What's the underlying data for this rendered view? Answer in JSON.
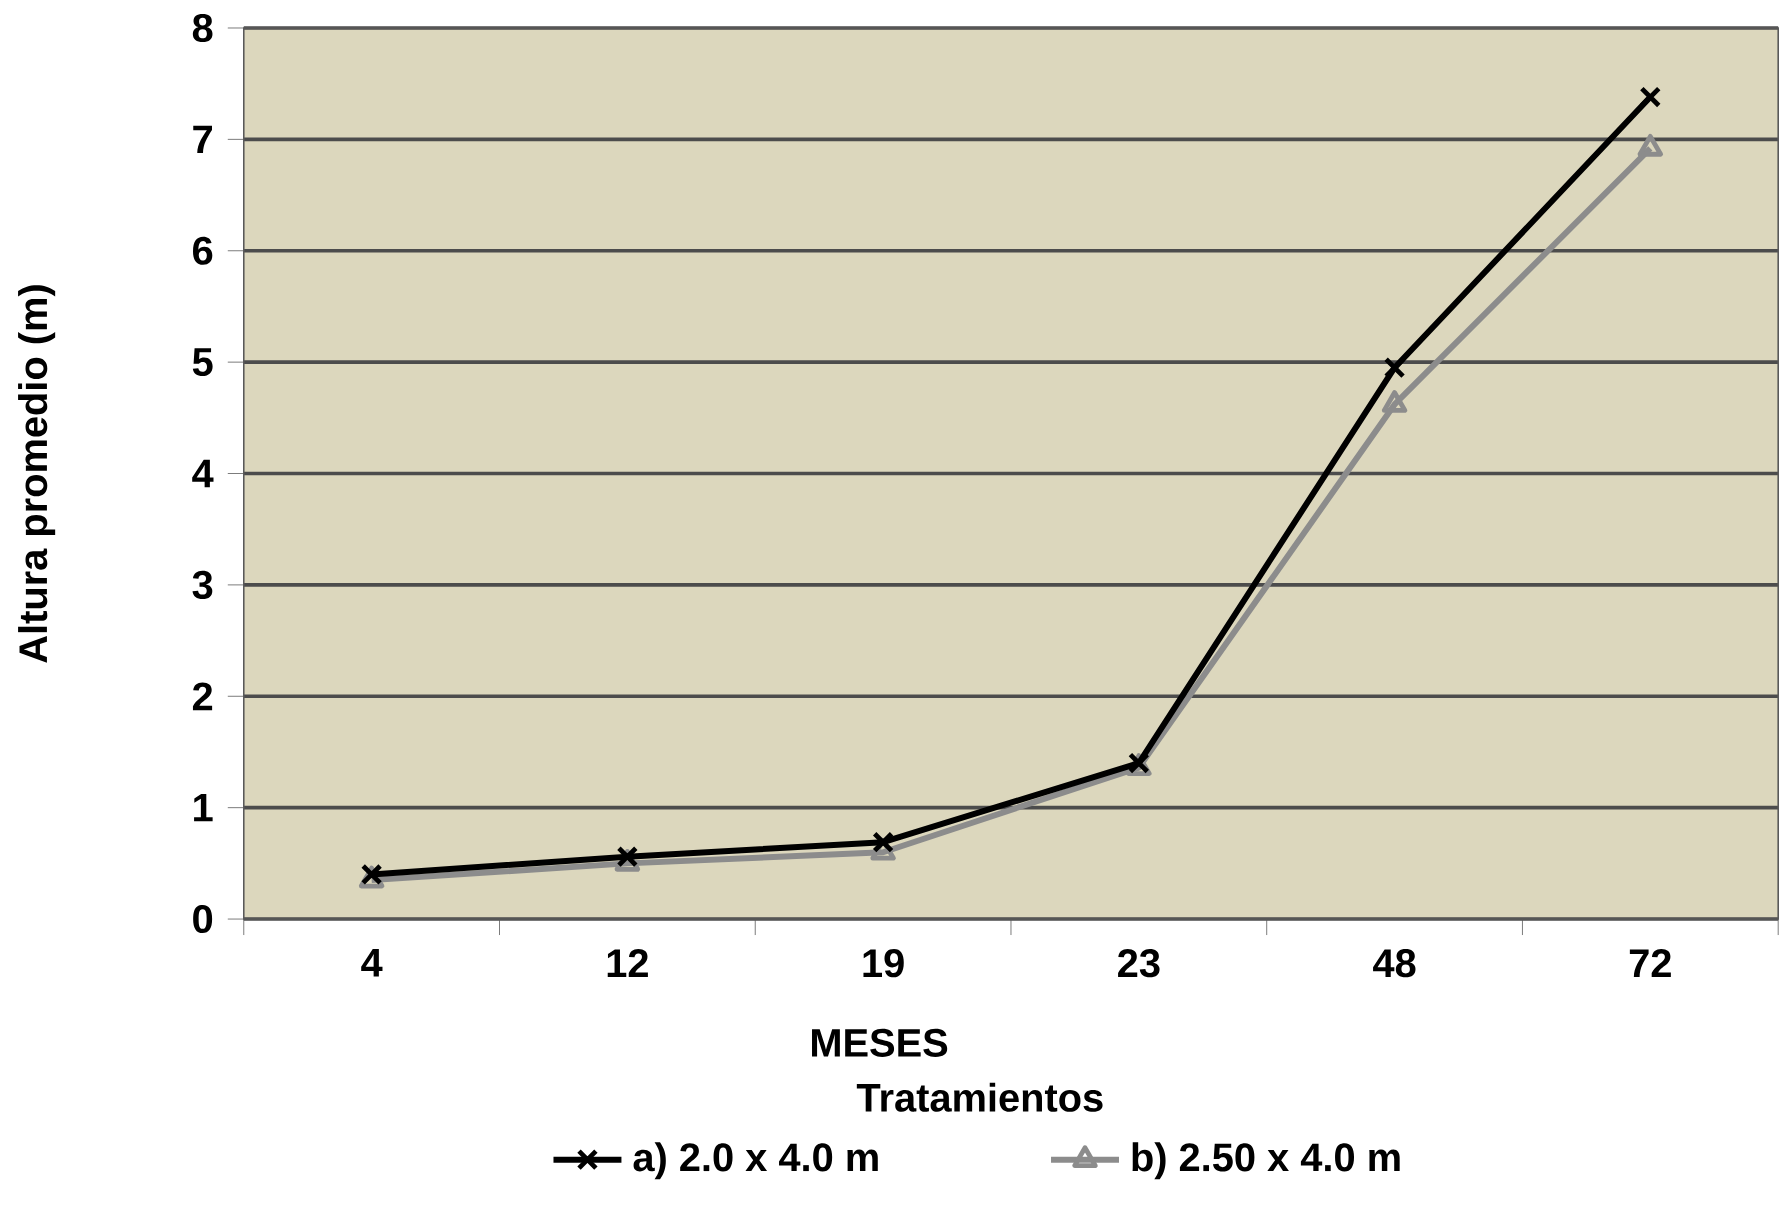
{
  "chart_data": {
    "type": "line",
    "xlabel": "MESES",
    "ylabel": "Altura promedio (m)",
    "legend_title": "Tratamientos",
    "categories": [
      "4",
      "12",
      "19",
      "23",
      "48",
      "72"
    ],
    "series": [
      {
        "name": "a)  2.0 x 4.0 m",
        "color": "#000000",
        "marker": "cross",
        "values": [
          0.4,
          0.56,
          0.69,
          1.4,
          4.95,
          7.38
        ]
      },
      {
        "name": "b)  2.50 x  4.0 m",
        "color": "#8c8c8c",
        "marker": "triangle",
        "values": [
          0.35,
          0.5,
          0.6,
          1.36,
          4.62,
          6.92
        ]
      }
    ],
    "ylim": [
      0,
      8
    ],
    "yticks": [
      0,
      1,
      2,
      3,
      4,
      5,
      6,
      7,
      8
    ],
    "grid": "y",
    "legend": "bottom",
    "line_style": "solid"
  }
}
